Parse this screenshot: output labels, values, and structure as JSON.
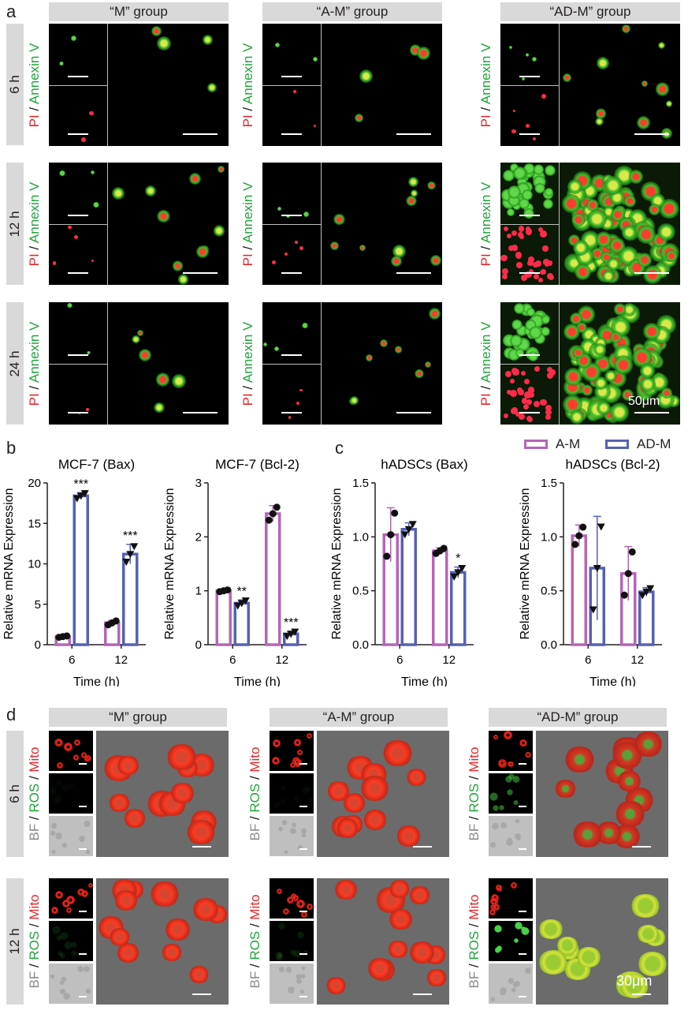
{
  "panel_a": {
    "letter": "a",
    "groups": [
      "“M” group",
      "“A-M” group",
      "“AD-M” group"
    ],
    "rows": [
      "6 h",
      "12 h",
      "24 h"
    ],
    "stain_red": "PI",
    "stain_sep": " / ",
    "stain_green": "Annexin V",
    "scale_label": "50μm"
  },
  "panel_b": {
    "letter": "b"
  },
  "panel_c": {
    "letter": "c"
  },
  "legend": {
    "am": "A-M",
    "adm": "AD-M",
    "am_color": "#b565b8",
    "adm_color": "#5561b3"
  },
  "panel_d": {
    "letter": "d",
    "groups": [
      "“M” group",
      "“A-M” group",
      "“AD-M” group"
    ],
    "rows": [
      "6 h",
      "12 h"
    ],
    "stain_gray": "BF",
    "stain_sep1": " / ",
    "stain_green": "ROS",
    "stain_sep2": " / ",
    "stain_red": "Mito",
    "scale_label": "30μm"
  },
  "chart_data": [
    {
      "type": "bar",
      "title": "MCF-7 (Bax)",
      "xlabel": "Time (h)",
      "ylabel": "Relative mRNA Expression",
      "categories": [
        "6",
        "12"
      ],
      "ylim": [
        0,
        20
      ],
      "yticks": [
        "0",
        "5",
        "10",
        "15",
        "20"
      ],
      "series": [
        {
          "name": "A-M",
          "values": [
            1.0,
            2.7
          ],
          "err": [
            0.1,
            0.3
          ]
        },
        {
          "name": "AD-M",
          "values": [
            18.4,
            11.2
          ],
          "err": [
            0.4,
            1.2
          ]
        }
      ],
      "significance": [
        "***",
        "***"
      ]
    },
    {
      "type": "bar",
      "title": "MCF-7 (Bcl-2)",
      "xlabel": "Time (h)",
      "ylabel": "Relative mRNA Expression",
      "categories": [
        "6",
        "12"
      ],
      "ylim": [
        0,
        3
      ],
      "yticks": [
        "0",
        "1",
        "2",
        "3"
      ],
      "series": [
        {
          "name": "A-M",
          "values": [
            1.0,
            2.43
          ],
          "err": [
            0.02,
            0.15
          ]
        },
        {
          "name": "AD-M",
          "values": [
            0.77,
            0.2
          ],
          "err": [
            0.06,
            0.05
          ]
        }
      ],
      "significance": [
        "**",
        "***"
      ]
    },
    {
      "type": "bar",
      "title": "hADSCs (Bax)",
      "xlabel": "Time (h)",
      "ylabel": "Relative mRNA Expression",
      "categories": [
        "6",
        "12"
      ],
      "ylim": [
        0,
        1.5
      ],
      "yticks": [
        "0.0",
        "0.5",
        "1.0",
        "1.5"
      ],
      "series": [
        {
          "name": "A-M",
          "values": [
            1.02,
            0.87
          ],
          "err": [
            0.25,
            0.03
          ]
        },
        {
          "name": "AD-M",
          "values": [
            1.07,
            0.67
          ],
          "err": [
            0.06,
            0.05
          ]
        }
      ],
      "significance": [
        "",
        "*"
      ]
    },
    {
      "type": "bar",
      "title": "hADSCs (Bcl-2)",
      "xlabel": "Time (h)",
      "ylabel": "Relative mRNA Expression",
      "categories": [
        "6",
        "12"
      ],
      "ylim": [
        0,
        1.5
      ],
      "yticks": [
        "0.0",
        "0.5",
        "1.0",
        "1.5"
      ],
      "series": [
        {
          "name": "A-M",
          "values": [
            1.01,
            0.66
          ],
          "err": [
            0.1,
            0.25
          ]
        },
        {
          "name": "AD-M",
          "values": [
            0.71,
            0.49
          ],
          "err": [
            0.48,
            0.04
          ]
        }
      ],
      "significance": [
        "",
        ""
      ]
    }
  ]
}
